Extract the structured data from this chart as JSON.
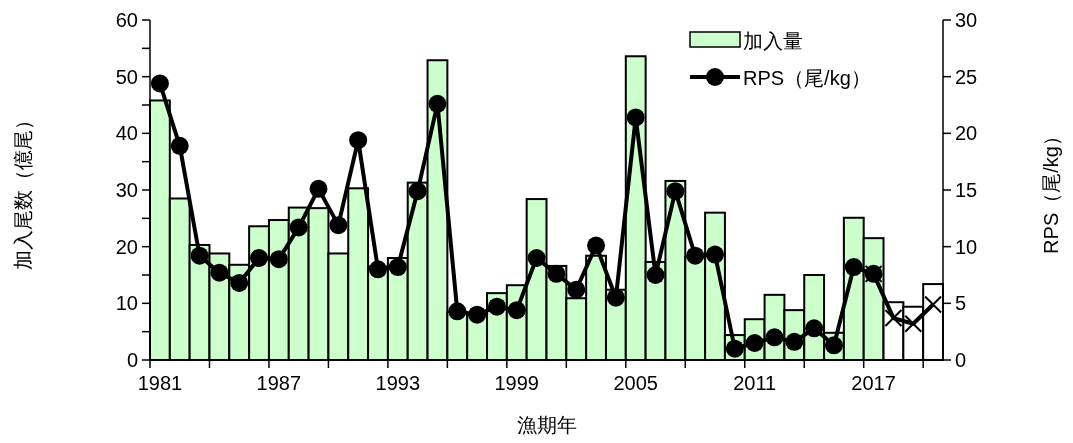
{
  "chart_data": {
    "type": "bar",
    "xlabel": "漁期年",
    "ylabel": "加入尾数（億尾）",
    "y2label": "RPS（尾/kg）",
    "categories": [
      "1981",
      null,
      null,
      null,
      null,
      null,
      "1987",
      null,
      null,
      null,
      null,
      null,
      "1993",
      null,
      null,
      null,
      null,
      null,
      "1999",
      null,
      null,
      null,
      null,
      null,
      "2005",
      null,
      null,
      null,
      null,
      null,
      "2011",
      null,
      null,
      null,
      null,
      null,
      "2017",
      null,
      null,
      null
    ],
    "series": [
      {
        "name": "加入量",
        "colors": [
          "#ccffcc",
          "#ccffcc",
          "#ccffcc",
          "#ccffcc",
          "#ccffcc",
          "#ccffcc",
          "#ccffcc",
          "#ccffcc",
          "#ccffcc",
          "#ccffcc",
          "#ccffcc",
          "#ccffcc",
          "#ccffcc",
          "#ccffcc",
          "#ccffcc",
          "#ccffcc",
          "#ccffcc",
          "#ccffcc",
          "#ccffcc",
          "#ccffcc",
          "#ccffcc",
          "#ccffcc",
          "#ccffcc",
          "#ccffcc",
          "#ccffcc",
          "#ccffcc",
          "#ccffcc",
          "#ccffcc",
          "#ccffcc",
          "#ccffcc",
          "#ccffcc",
          "#ccffcc",
          "#ccffcc",
          "#ccffcc",
          "#ccffcc",
          "#ccffcc",
          "#ccffcc",
          "#ffffff",
          "#ffffff",
          "#ffffff"
        ],
        "color": "#ccffcc",
        "values": [
          45.8,
          28.5,
          20.3,
          18.8,
          16.8,
          23.6,
          24.7,
          26.9,
          26.8,
          18.8,
          30.3,
          16.5,
          18.0,
          31.3,
          52.9,
          8.5,
          8.0,
          11.8,
          13.2,
          28.4,
          16.6,
          10.9,
          18.4,
          12.4,
          53.6,
          17.3,
          31.6,
          18.2,
          26.0,
          4.4,
          7.2,
          11.5,
          8.8,
          15.0,
          4.8,
          25.1,
          21.5,
          10.2,
          9.4,
          13.4
        ]
      },
      {
        "name": "RPS（尾/kg）",
        "type": "line",
        "axis": "y2",
        "color": "#000000",
        "marker": "circle",
        "line_style": "solid",
        "values": [
          24.4,
          18.9,
          9.2,
          7.7,
          6.8,
          9.0,
          8.9,
          11.7,
          15.1,
          11.9,
          19.4,
          8.0,
          8.2,
          14.9,
          22.6,
          4.3,
          4.0,
          4.7,
          4.4,
          9.0,
          7.6,
          6.2,
          10.1,
          5.5,
          21.4,
          7.5,
          14.9,
          9.2,
          9.3,
          1.0,
          1.5,
          2.0,
          1.6,
          2.8,
          1.3,
          8.2,
          7.6,
          null,
          null,
          null
        ]
      },
      {
        "type": "line",
        "axis": "y2",
        "color": "#000000",
        "marker": "cross",
        "line_style": "solid",
        "values": [
          null,
          null,
          null,
          null,
          null,
          null,
          null,
          null,
          null,
          null,
          null,
          null,
          null,
          null,
          null,
          null,
          null,
          null,
          null,
          null,
          null,
          null,
          null,
          null,
          null,
          null,
          null,
          null,
          null,
          null,
          null,
          null,
          null,
          null,
          null,
          null,
          7.6,
          3.7,
          3.2,
          4.9
        ]
      }
    ],
    "ylim": [
      0,
      60
    ],
    "yticks": [
      0,
      {
        "value": 5,
        "label": null
      },
      10,
      {
        "value": 15,
        "label": null
      },
      20,
      {
        "value": 25,
        "label": null
      },
      30,
      {
        "value": 35,
        "label": null
      },
      40,
      {
        "value": 45,
        "label": null
      },
      50,
      {
        "value": 55,
        "label": null
      },
      60
    ],
    "y2lim": [
      0,
      30
    ],
    "y2ticks": [
      0,
      5,
      10,
      15,
      20,
      25,
      30
    ],
    "legend": "top right",
    "grid": false
  }
}
